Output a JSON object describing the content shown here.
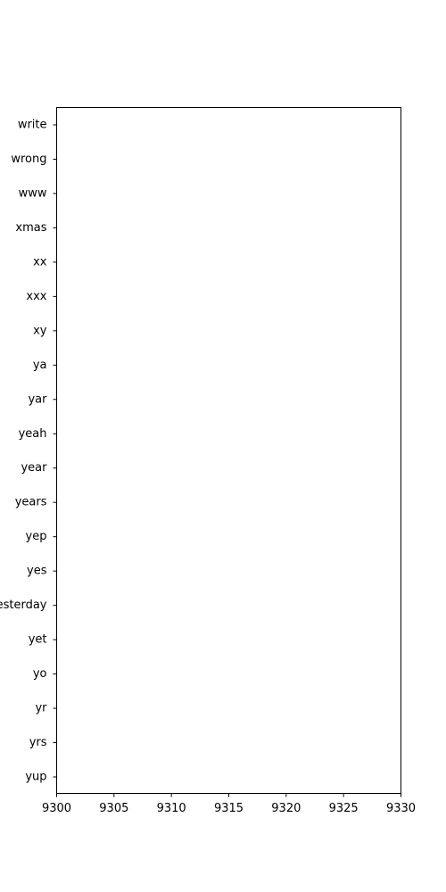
{
  "chart_data": {
    "type": "bar",
    "orientation": "horizontal",
    "categories": [
      "write",
      "wrong",
      "www",
      "xmas",
      "xx",
      "xxx",
      "xy",
      "ya",
      "yar",
      "yeah",
      "year",
      "years",
      "yep",
      "yes",
      "yesterday",
      "yet",
      "yo",
      "yr",
      "yrs",
      "yup"
    ],
    "xlim": [
      9300,
      9330
    ],
    "xticks": [
      9300,
      9305,
      9310,
      9315,
      9320,
      9325,
      9330
    ],
    "title": "",
    "xlabel": "",
    "ylabel": "",
    "grid": false,
    "legend": "none"
  }
}
